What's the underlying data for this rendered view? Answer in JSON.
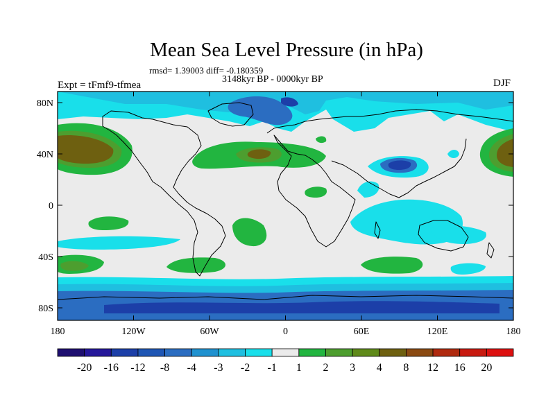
{
  "map": {
    "title": "Mean Sea Level Pressure (in hPa)",
    "stats_line": "rmsd= 1.39003 diff= -0.180359",
    "period": "3148kyr BP - 0000kyr BP",
    "experiment": "Expt = tFmf9-tfmea",
    "season": "DJF",
    "lat_labels": [
      "80N",
      "40N",
      "0",
      "40S",
      "80S"
    ],
    "lon_labels": [
      "180",
      "120W",
      "60W",
      "0",
      "60E",
      "120E",
      "180"
    ]
  },
  "colorbar": {
    "labels": [
      "-20",
      "-16",
      "-12",
      "-8",
      "-4",
      "-3",
      "-2",
      "-1",
      "1",
      "2",
      "3",
      "4",
      "8",
      "12",
      "16",
      "20"
    ],
    "colors": [
      "#1e0f70",
      "#25179a",
      "#1c3fa8",
      "#1f56b4",
      "#2b6dc1",
      "#1f91cf",
      "#1fbfe0",
      "#19dfea",
      "#ebebeb",
      "#22b540",
      "#4d9e2f",
      "#5f8a1a",
      "#6e6010",
      "#8a4a12",
      "#b02a0f",
      "#c81a10",
      "#dd1010"
    ]
  },
  "legend_colors": {
    "ocean_default": "#ebebeb",
    "neg_weak": "#19dfea",
    "neg_mid": "#1fbfe0",
    "neg_strong": "#2b6dc1",
    "neg_very_strong": "#1c3fa8",
    "pos_weak": "#22b540",
    "pos_mid": "#4d9e2f",
    "pos_strong": "#6e6010"
  }
}
